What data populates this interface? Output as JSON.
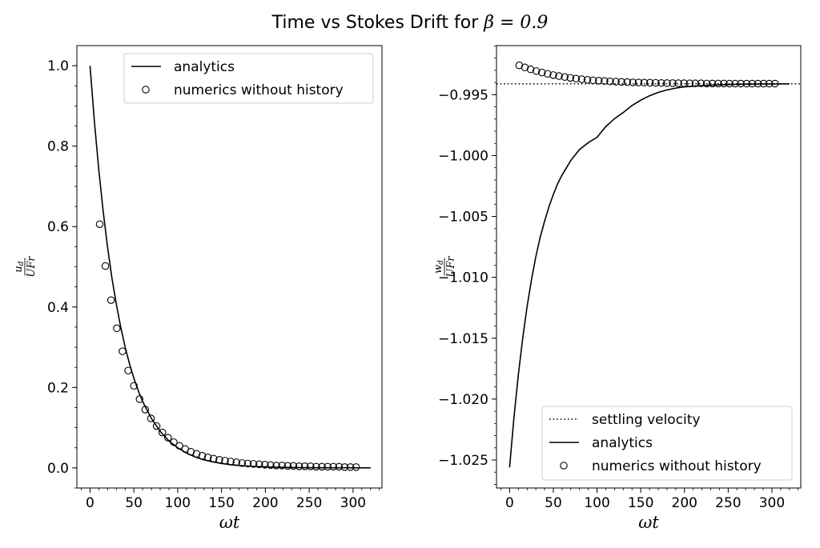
{
  "figure": {
    "title_text": "Time vs Stokes Drift for ",
    "title_math": "β = 0.9"
  },
  "chart_data": [
    {
      "type": "line",
      "xlabel": "ωt",
      "ylabel_num": "u_d",
      "ylabel_den": "UFr",
      "xlim": [
        -15,
        333
      ],
      "ylim": [
        -0.05,
        1.05
      ],
      "xticks": [
        0,
        50,
        100,
        150,
        200,
        250,
        300
      ],
      "yticks": [
        0.0,
        0.2,
        0.4,
        0.6,
        0.8,
        1.0
      ],
      "ytick_labels": [
        "0.0",
        "0.2",
        "0.4",
        "0.6",
        "0.8",
        "1.0"
      ],
      "legend_position": "upper right",
      "series": [
        {
          "name": "analytics",
          "style": "solid",
          "x": [
            0,
            5,
            10,
            15,
            20,
            25,
            30,
            35,
            40,
            45,
            50,
            55,
            60,
            70,
            80,
            90,
            100,
            110,
            120,
            130,
            140,
            150,
            160,
            170,
            180,
            190,
            200,
            210,
            220,
            230,
            240,
            250,
            260,
            270,
            280,
            290,
            300,
            310,
            320
          ],
          "y": [
            1.0,
            0.861,
            0.741,
            0.638,
            0.549,
            0.472,
            0.407,
            0.35,
            0.301,
            0.259,
            0.223,
            0.192,
            0.165,
            0.123,
            0.091,
            0.067,
            0.05,
            0.037,
            0.027,
            0.02,
            0.015,
            0.011,
            0.008,
            0.006,
            0.0045,
            0.0033,
            0.0025,
            0.0018,
            0.0013,
            0.001,
            0.0007,
            0.0005,
            0.0004,
            0.0003,
            0.0002,
            0.0002,
            0.0001,
            0.0001,
            0.0001
          ]
        },
        {
          "name": "numerics without history",
          "style": "open-circle",
          "x": [
            11,
            17.5,
            24,
            30.5,
            37,
            43.5,
            50,
            56.5,
            63,
            69.5,
            76,
            82.5,
            89,
            95.5,
            102,
            108.5,
            115,
            121.5,
            128,
            134.5,
            141,
            147.5,
            154,
            160.5,
            167,
            173.5,
            180,
            186.5,
            193,
            199.5,
            206,
            212.5,
            219,
            225.5,
            232,
            238.5,
            245,
            251.5,
            258,
            264.5,
            271,
            277.5,
            284,
            290.5,
            297,
            303.5
          ],
          "y": [
            0.606,
            0.502,
            0.417,
            0.347,
            0.29,
            0.242,
            0.204,
            0.171,
            0.145,
            0.123,
            0.104,
            0.088,
            0.075,
            0.064,
            0.055,
            0.047,
            0.04,
            0.035,
            0.03,
            0.026,
            0.023,
            0.02,
            0.018,
            0.016,
            0.014,
            0.012,
            0.011,
            0.01,
            0.009,
            0.008,
            0.007,
            0.006,
            0.006,
            0.005,
            0.005,
            0.004,
            0.004,
            0.004,
            0.003,
            0.003,
            0.003,
            0.003,
            0.003,
            0.002,
            0.002,
            0.002
          ]
        }
      ]
    },
    {
      "type": "line",
      "xlabel": "ωt",
      "ylabel_num": "w_d",
      "ylabel_den": "UFr",
      "xlim": [
        -15,
        333
      ],
      "ylim": [
        -1.0273,
        -0.99097
      ],
      "xticks": [
        0,
        50,
        100,
        150,
        200,
        250,
        300
      ],
      "yticks": [
        -0.995,
        -1.0,
        -1.005,
        -1.01,
        -1.015,
        -1.02,
        -1.025
      ],
      "ytick_labels": [
        "−0.995",
        "−1.000",
        "−1.005",
        "−1.010",
        "−1.015",
        "−1.020",
        "−1.025"
      ],
      "legend_position": "lower right",
      "series": [
        {
          "name": "settling velocity",
          "style": "dotted",
          "x": [
            -15,
            333
          ],
          "y": [
            -0.99411,
            -0.99411
          ]
        },
        {
          "name": "analytics",
          "style": "solid",
          "x": [
            0,
            5,
            10,
            15,
            20,
            25,
            30,
            35,
            40,
            45,
            50,
            55,
            60,
            70,
            80,
            90,
            100,
            110,
            120,
            130,
            140,
            150,
            160,
            170,
            180,
            190,
            200,
            220,
            240,
            260,
            280,
            300,
            320
          ],
          "y": [
            -1.0256,
            -1.0215,
            -1.018,
            -1.015,
            -1.0124,
            -1.0102,
            -1.0083,
            -1.0067,
            -1.0054,
            -1.0042,
            -1.0032,
            -1.0023,
            -1.0016,
            -1.0004,
            -0.9995,
            -0.99894,
            -0.9985,
            -0.99762,
            -0.99697,
            -0.99646,
            -0.99589,
            -0.99545,
            -0.99509,
            -0.99481,
            -0.99461,
            -0.99446,
            -0.99436,
            -0.99426,
            -0.99419,
            -0.99415,
            -0.99413,
            -0.99412,
            -0.99411
          ]
        },
        {
          "name": "numerics without history",
          "style": "open-circle",
          "x": [
            11,
            17.5,
            24,
            30.5,
            37,
            43.5,
            50,
            56.5,
            63,
            69.5,
            76,
            82.5,
            89,
            95.5,
            102,
            108.5,
            115,
            121.5,
            128,
            134.5,
            141,
            147.5,
            154,
            160.5,
            167,
            173.5,
            180,
            186.5,
            193,
            199.5,
            206,
            212.5,
            219,
            225.5,
            232,
            238.5,
            245,
            251.5,
            258,
            264.5,
            271,
            277.5,
            284,
            290.5,
            297,
            303.5
          ],
          "y": [
            -0.99259,
            -0.99276,
            -0.99292,
            -0.99306,
            -0.99318,
            -0.99329,
            -0.99339,
            -0.99347,
            -0.99355,
            -0.99362,
            -0.99368,
            -0.99373,
            -0.99378,
            -0.99382,
            -0.99385,
            -0.99388,
            -0.99391,
            -0.99393,
            -0.99395,
            -0.99397,
            -0.99399,
            -0.994,
            -0.99401,
            -0.99402,
            -0.99403,
            -0.99404,
            -0.99405,
            -0.99405,
            -0.99406,
            -0.99406,
            -0.99407,
            -0.99407,
            -0.99407,
            -0.99408,
            -0.99408,
            -0.99408,
            -0.99408,
            -0.99409,
            -0.99409,
            -0.99409,
            -0.99409,
            -0.99409,
            -0.99409,
            -0.99409,
            -0.99409,
            -0.99409
          ]
        }
      ]
    }
  ]
}
